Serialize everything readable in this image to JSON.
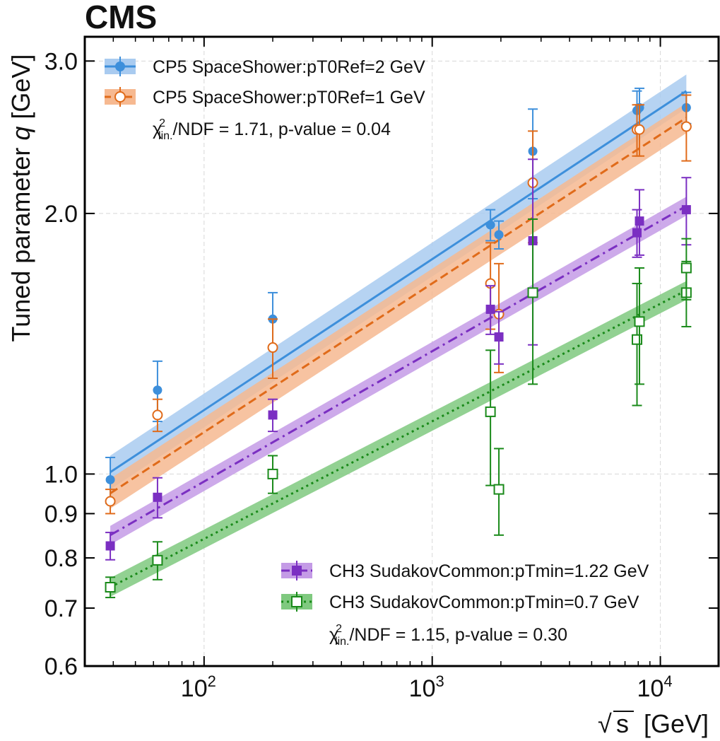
{
  "experiment_label": "CMS",
  "chart_data": {
    "type": "scatter",
    "xlabel": "√s [GeV]",
    "xlabel_sqrt": "√",
    "xlabel_var": "s",
    "xlabel_unit": "[GeV]",
    "ylabel": "Tuned parameter q [GeV]",
    "ylabel_prefix": "Tuned parameter ",
    "ylabel_var": "q",
    "ylabel_unit": " [GeV]",
    "xscale": "log",
    "yscale": "log",
    "xlim": [
      30,
      18000
    ],
    "ylim": [
      0.6,
      3.2
    ],
    "grid": true,
    "x_ticks": [
      {
        "value": 100,
        "base": "10",
        "exp": "2"
      },
      {
        "value": 1000,
        "base": "10",
        "exp": "3"
      },
      {
        "value": 10000,
        "base": "10",
        "exp": "4"
      }
    ],
    "y_ticks": [
      {
        "value": 0.6,
        "label": "0.6"
      },
      {
        "value": 0.7,
        "label": "0.7"
      },
      {
        "value": 0.8,
        "label": "0.8"
      },
      {
        "value": 0.9,
        "label": "0.9"
      },
      {
        "value": 1.0,
        "label": "1.0"
      },
      {
        "value": 2.0,
        "label": "2.0"
      },
      {
        "value": 3.0,
        "label": "3.0"
      }
    ],
    "series": [
      {
        "name": "CP5 SpaceShower:pT0Ref=2 GeV",
        "color": "#3d8fdb",
        "band_color": "#a9cbf0",
        "marker": "filled-circle",
        "line_style": "solid",
        "fit": {
          "x": [
            38.8,
            13000
          ],
          "y": [
            1.005,
            2.77
          ],
          "band_halfwidth": 0.045
        },
        "points": [
          {
            "x": 38.8,
            "y": 0.985,
            "err": 0.06
          },
          {
            "x": 62.5,
            "y": 1.25,
            "err": 0.1
          },
          {
            "x": 200,
            "y": 1.51,
            "err": 0.11
          },
          {
            "x": 1800,
            "y": 1.94,
            "err": 0.08
          },
          {
            "x": 1960,
            "y": 1.89,
            "err": 0.07
          },
          {
            "x": 2760,
            "y": 2.36,
            "err": 0.28
          },
          {
            "x": 7900,
            "y": 2.63,
            "err": 0.14
          },
          {
            "x": 8100,
            "y": 2.65,
            "err": 0.14
          },
          {
            "x": 13000,
            "y": 2.65,
            "err": 0.11
          }
        ]
      },
      {
        "name": "CP5 SpaceShower:pT0Ref=1 GeV",
        "color": "#e06b1a",
        "band_color": "#f6b991",
        "marker": "open-circle",
        "line_style": "dashed",
        "fit": {
          "x": [
            38.8,
            13000
          ],
          "y": [
            0.95,
            2.58
          ],
          "band_halfwidth": 0.04
        },
        "points": [
          {
            "x": 38.8,
            "y": 0.93,
            "err": 0.03
          },
          {
            "x": 62.5,
            "y": 1.17,
            "err": 0.05
          },
          {
            "x": 200,
            "y": 1.4,
            "err": 0.11
          },
          {
            "x": 1800,
            "y": 1.66,
            "err": 0.19
          },
          {
            "x": 1960,
            "y": 1.53,
            "err": 0.22
          },
          {
            "x": 2760,
            "y": 2.17,
            "err": 0.32
          },
          {
            "x": 7900,
            "y": 2.5,
            "err": 0.17
          },
          {
            "x": 8100,
            "y": 2.5,
            "err": 0.17
          },
          {
            "x": 13000,
            "y": 2.52,
            "err": 0.22
          }
        ]
      },
      {
        "name": "CH3 SudakovCommon:pTmin=1.22 GeV",
        "color": "#7b2fc2",
        "band_color": "#c49be6",
        "marker": "filled-square",
        "line_style": "dashdot",
        "fit": {
          "x": [
            38.8,
            13000
          ],
          "y": [
            0.85,
            2.04
          ],
          "band_halfwidth": 0.025
        },
        "points": [
          {
            "x": 38.8,
            "y": 0.826,
            "err": 0.03
          },
          {
            "x": 62.5,
            "y": 0.94,
            "err": 0.05
          },
          {
            "x": 200,
            "y": 1.17,
            "err": 0.05
          },
          {
            "x": 1800,
            "y": 1.55,
            "err": 0.1
          },
          {
            "x": 1960,
            "y": 1.44,
            "err": 0.1
          },
          {
            "x": 2760,
            "y": 1.86,
            "err": 0.45
          },
          {
            "x": 7900,
            "y": 1.9,
            "err": 0.12
          },
          {
            "x": 8100,
            "y": 1.96,
            "err": 0.17
          },
          {
            "x": 13000,
            "y": 2.02,
            "err": 0.18
          }
        ]
      },
      {
        "name": "CH3 SudakovCommon:pTmin=0.7 GeV",
        "color": "#1a8a1a",
        "band_color": "#7fc97f",
        "marker": "open-square",
        "line_style": "dotted",
        "fit": {
          "x": [
            38.8,
            13000
          ],
          "y": [
            0.74,
            1.63
          ],
          "band_halfwidth": 0.025
        },
        "points": [
          {
            "x": 38.8,
            "y": 0.74,
            "err": 0.02
          },
          {
            "x": 62.5,
            "y": 0.795,
            "err": 0.04
          },
          {
            "x": 200,
            "y": 1.0,
            "err": 0.05
          },
          {
            "x": 1800,
            "y": 1.18,
            "err": 0.21
          },
          {
            "x": 1960,
            "y": 0.96,
            "err": 0.11
          },
          {
            "x": 2760,
            "y": 1.62,
            "err": 0.35
          },
          {
            "x": 7900,
            "y": 1.43,
            "err": 0.23
          },
          {
            "x": 8100,
            "y": 1.5,
            "err": 0.23
          },
          {
            "x": 13000,
            "y": 1.62,
            "err": 0.14
          },
          {
            "x": 13000,
            "y": 1.73,
            "err": 0.14
          }
        ]
      }
    ],
    "stats": [
      {
        "prefix": "χ",
        "sup": "2",
        "sub": "lin.",
        "text": "/NDF = 1.71, p-value = 0.04"
      },
      {
        "prefix": "χ",
        "sup": "2",
        "sub": "lin.",
        "text": "/NDF = 1.15, p-value = 0.30"
      }
    ]
  }
}
